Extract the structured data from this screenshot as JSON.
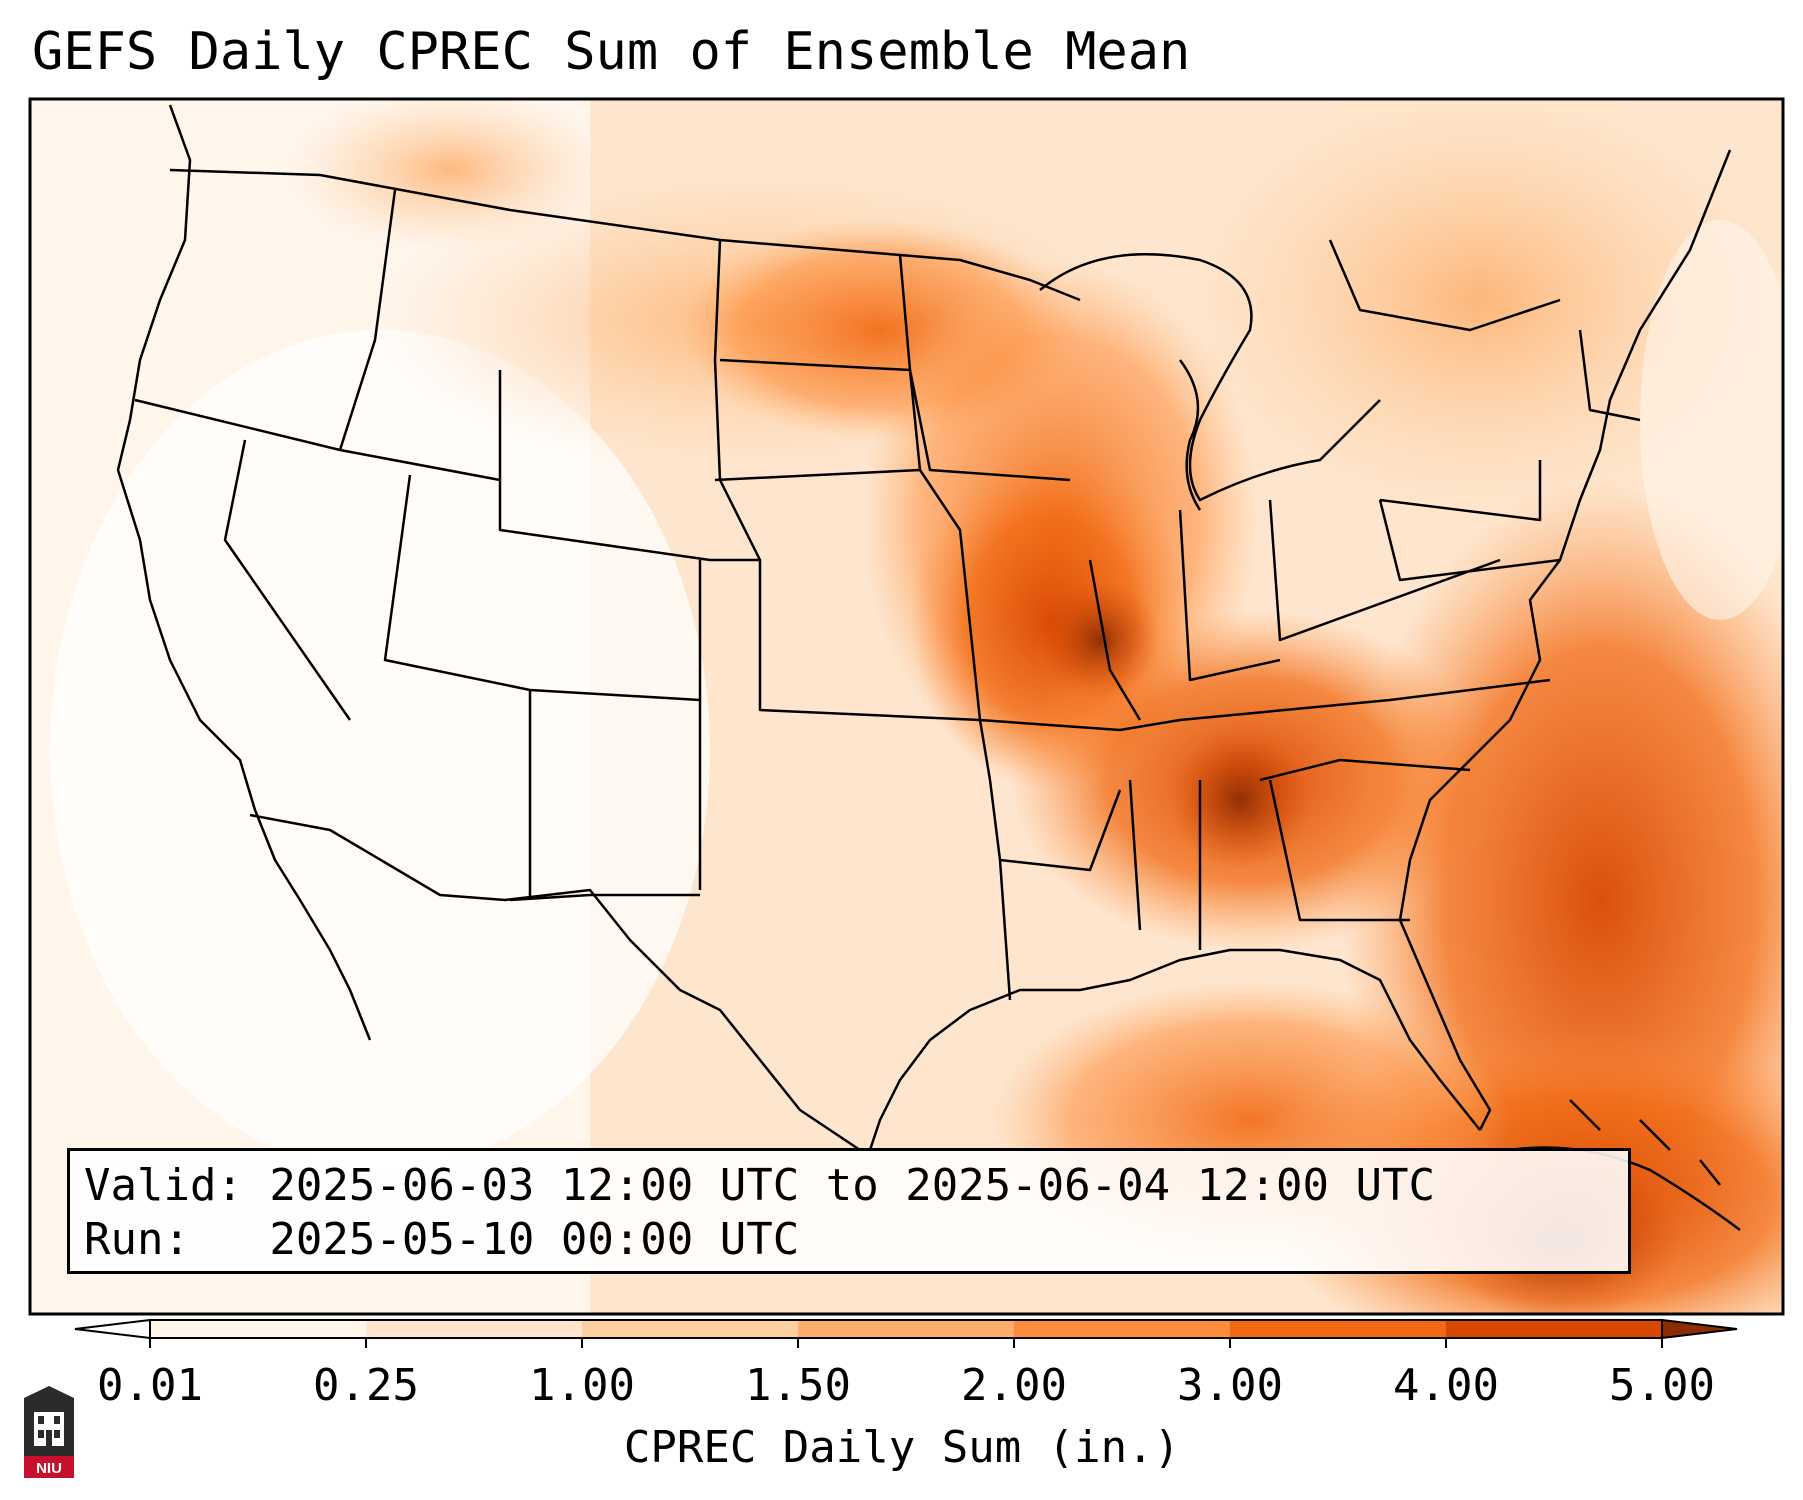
{
  "title": "GEFS Daily CPREC Sum of Ensemble Mean",
  "info": {
    "valid_line": "Valid: 2025-06-03 12:00 UTC to 2025-06-04 12:00 UTC",
    "run_line": "Run:   2025-05-10 00:00 UTC"
  },
  "colorbar": {
    "label": "CPREC Daily Sum (in.)",
    "ticks": [
      "0.01",
      "0.25",
      "1.00",
      "1.50",
      "2.00",
      "3.00",
      "4.00",
      "5.00"
    ],
    "colors": [
      "#fff5eb",
      "#fee6ce",
      "#fdd0a2",
      "#fdae6b",
      "#fd8d3c",
      "#f16913",
      "#d94801",
      "#8c2d04"
    ],
    "extend": "both"
  },
  "logo": {
    "text": "NIU"
  },
  "map_colors": {
    "land_bg": "#fff5eb",
    "border": "#000000"
  }
}
